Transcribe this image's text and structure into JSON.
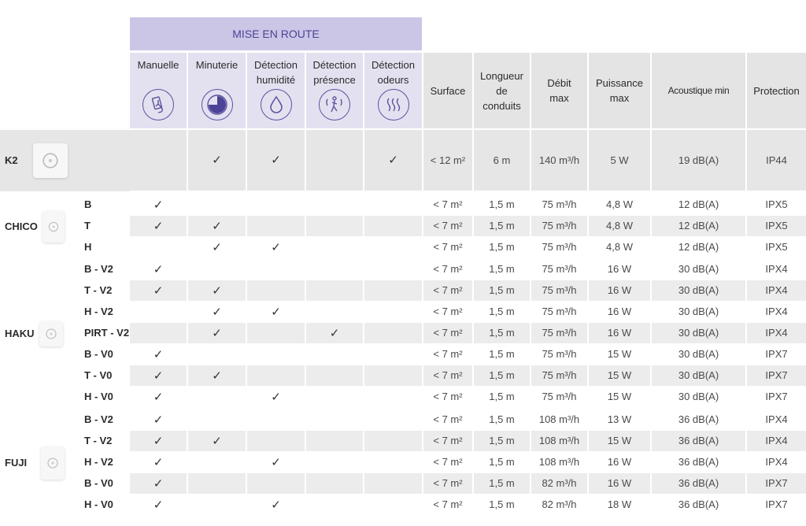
{
  "banner": "MISE EN ROUTE",
  "headers": {
    "manuelle": "Manuelle",
    "minuterie": "Minuterie",
    "detection_humidite": "Détection\nhumidité",
    "detection_presence": "Détection\nprésence",
    "detection_odeurs": "Détection\nodeurs",
    "surface": "Surface",
    "longueur": "Longueur\nde\nconduits",
    "debit": "Débit\nmax",
    "puissance": "Puissance\nmax",
    "acoustique": "Acoustique min",
    "protection": "Protection"
  },
  "icons": {
    "manuelle": "hand-pull-icon",
    "minuterie": "timer-icon",
    "detection_humidite": "water-drop-icon",
    "detection_presence": "motion-sensor-icon",
    "detection_odeurs": "odor-waves-icon"
  },
  "check_symbol": "✓",
  "products": [
    {
      "name": "K2",
      "image": "k2-fan-image",
      "rows": [
        {
          "variant": "",
          "checks": [
            false,
            true,
            true,
            false,
            true
          ],
          "surface": "< 12 m²",
          "longueur": "6 m",
          "debit": "140 m³/h",
          "puissance": "5 W",
          "acoustique": "19 dB(A)",
          "protection": "IP44"
        }
      ]
    },
    {
      "name": "CHICO",
      "image": "chico-fan-image",
      "rows": [
        {
          "variant": "B",
          "checks": [
            true,
            false,
            false,
            false,
            false
          ],
          "surface": "< 7 m²",
          "longueur": "1,5 m",
          "debit": "75 m³/h",
          "puissance": "4,8 W",
          "acoustique": "12 dB(A)",
          "protection": "IPX5"
        },
        {
          "variant": "T",
          "checks": [
            true,
            true,
            false,
            false,
            false
          ],
          "surface": "< 7 m²",
          "longueur": "1,5 m",
          "debit": "75 m³/h",
          "puissance": "4,8 W",
          "acoustique": "12 dB(A)",
          "protection": "IPX5"
        },
        {
          "variant": "H",
          "checks": [
            false,
            true,
            true,
            false,
            false
          ],
          "surface": "< 7 m²",
          "longueur": "1,5 m",
          "debit": "75 m³/h",
          "puissance": "4,8 W",
          "acoustique": "12 dB(A)",
          "protection": "IPX5"
        }
      ]
    },
    {
      "name": "HAKU",
      "image": "haku-fan-image",
      "rows": [
        {
          "variant": "B - V2",
          "checks": [
            true,
            false,
            false,
            false,
            false
          ],
          "surface": "< 7 m²",
          "longueur": "1,5 m",
          "debit": "75 m³/h",
          "puissance": "16 W",
          "acoustique": "30 dB(A)",
          "protection": "IPX4"
        },
        {
          "variant": "T - V2",
          "checks": [
            true,
            true,
            false,
            false,
            false
          ],
          "surface": "< 7 m²",
          "longueur": "1,5 m",
          "debit": "75 m³/h",
          "puissance": "16 W",
          "acoustique": "30 dB(A)",
          "protection": "IPX4"
        },
        {
          "variant": "H - V2",
          "checks": [
            false,
            true,
            true,
            false,
            false
          ],
          "surface": "< 7 m²",
          "longueur": "1,5 m",
          "debit": "75 m³/h",
          "puissance": "16 W",
          "acoustique": "30 dB(A)",
          "protection": "IPX4"
        },
        {
          "variant": "PIRT - V2",
          "checks": [
            false,
            true,
            false,
            true,
            false
          ],
          "surface": "< 7 m²",
          "longueur": "1,5 m",
          "debit": "75 m³/h",
          "puissance": "16 W",
          "acoustique": "30 dB(A)",
          "protection": "IPX4"
        },
        {
          "variant": "B - V0",
          "checks": [
            true,
            false,
            false,
            false,
            false
          ],
          "surface": "< 7 m²",
          "longueur": "1,5 m",
          "debit": "75 m³/h",
          "puissance": "15 W",
          "acoustique": "30 dB(A)",
          "protection": "IPX7"
        },
        {
          "variant": "T - V0",
          "checks": [
            true,
            true,
            false,
            false,
            false
          ],
          "surface": "< 7 m²",
          "longueur": "1,5 m",
          "debit": "75 m³/h",
          "puissance": "15 W",
          "acoustique": "30 dB(A)",
          "protection": "IPX7"
        },
        {
          "variant": "H - V0",
          "checks": [
            true,
            false,
            true,
            false,
            false
          ],
          "surface": "< 7 m²",
          "longueur": "1,5 m",
          "debit": "75 m³/h",
          "puissance": "15 W",
          "acoustique": "30 dB(A)",
          "protection": "IPX7"
        }
      ]
    },
    {
      "name": "FUJI",
      "image": "fuji-fan-image",
      "rows": [
        {
          "variant": "B - V2",
          "checks": [
            true,
            false,
            false,
            false,
            false
          ],
          "surface": "< 7 m²",
          "longueur": "1,5 m",
          "debit": "108 m³/h",
          "puissance": "13 W",
          "acoustique": "36 dB(A)",
          "protection": "IPX4"
        },
        {
          "variant": "T - V2",
          "checks": [
            true,
            true,
            false,
            false,
            false
          ],
          "surface": "< 7 m²",
          "longueur": "1,5 m",
          "debit": "108 m³/h",
          "puissance": "15 W",
          "acoustique": "36 dB(A)",
          "protection": "IPX4"
        },
        {
          "variant": "H - V2",
          "checks": [
            true,
            false,
            true,
            false,
            false
          ],
          "surface": "< 7 m²",
          "longueur": "1,5 m",
          "debit": "108 m³/h",
          "puissance": "16 W",
          "acoustique": "36 dB(A)",
          "protection": "IPX4"
        },
        {
          "variant": "B - V0",
          "checks": [
            true,
            false,
            false,
            false,
            false
          ],
          "surface": "< 7 m²",
          "longueur": "1,5 m",
          "debit": "82 m³/h",
          "puissance": "16 W",
          "acoustique": "36 dB(A)",
          "protection": "IPX7"
        },
        {
          "variant": "H - V0",
          "checks": [
            true,
            false,
            true,
            false,
            false
          ],
          "surface": "< 7 m²",
          "longueur": "1,5 m",
          "debit": "82 m³/h",
          "puissance": "18 W",
          "acoustique": "36 dB(A)",
          "protection": "IPX7"
        }
      ]
    }
  ]
}
